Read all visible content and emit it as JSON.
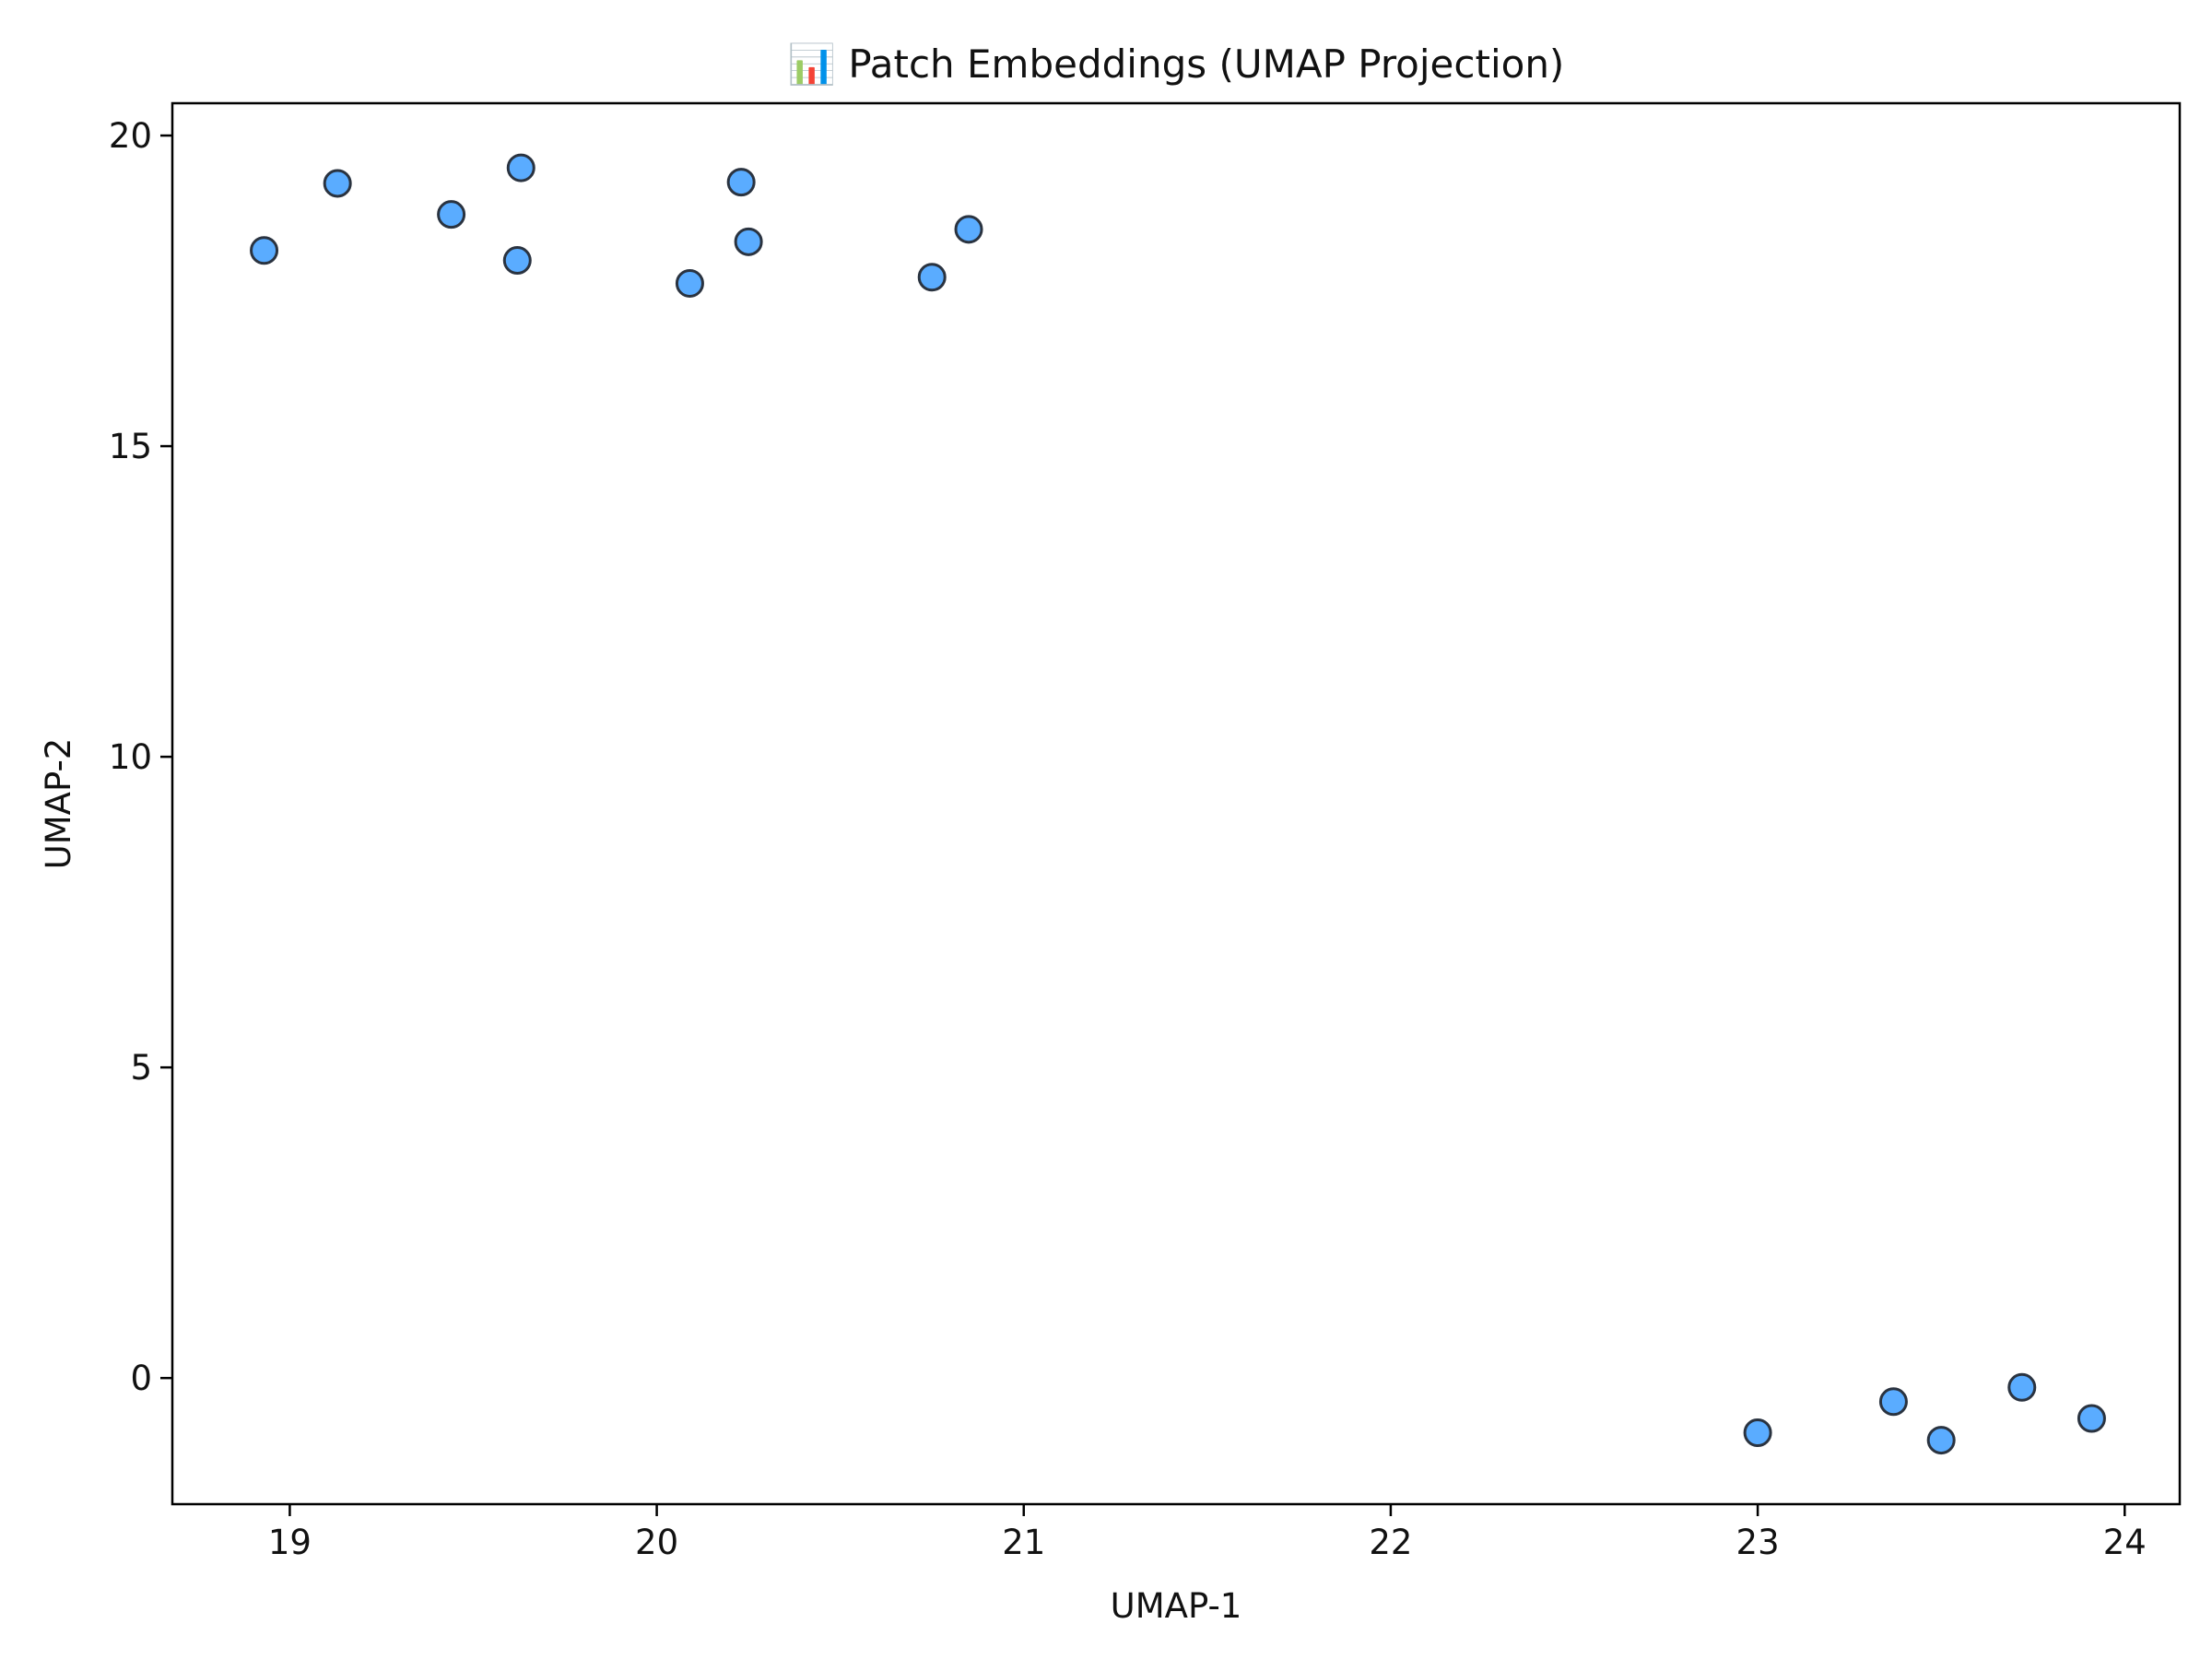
{
  "chart_data": {
    "type": "scatter",
    "title": "📊 Patch Embeddings (UMAP Projection)",
    "xlabel": "UMAP-1",
    "ylabel": "UMAP-2",
    "xlim": [
      18.68,
      24.15
    ],
    "ylim": [
      -2.03,
      20.52
    ],
    "xticks": [
      19,
      20,
      21,
      22,
      23,
      24
    ],
    "yticks": [
      0,
      5,
      10,
      15,
      20
    ],
    "grid": false,
    "point_color": "#5aacff",
    "point_edge_color": "#2a3340",
    "points": [
      {
        "x": 18.93,
        "y": 18.15
      },
      {
        "x": 19.13,
        "y": 19.23
      },
      {
        "x": 19.44,
        "y": 18.73
      },
      {
        "x": 19.63,
        "y": 19.48
      },
      {
        "x": 19.62,
        "y": 17.99
      },
      {
        "x": 20.09,
        "y": 17.62
      },
      {
        "x": 20.23,
        "y": 19.25
      },
      {
        "x": 20.25,
        "y": 18.29
      },
      {
        "x": 20.75,
        "y": 17.72
      },
      {
        "x": 20.85,
        "y": 18.49
      },
      {
        "x": 23.0,
        "y": -0.88
      },
      {
        "x": 23.37,
        "y": -0.38
      },
      {
        "x": 23.5,
        "y": -1.0
      },
      {
        "x": 23.72,
        "y": -0.15
      },
      {
        "x": 23.91,
        "y": -0.65
      }
    ]
  }
}
